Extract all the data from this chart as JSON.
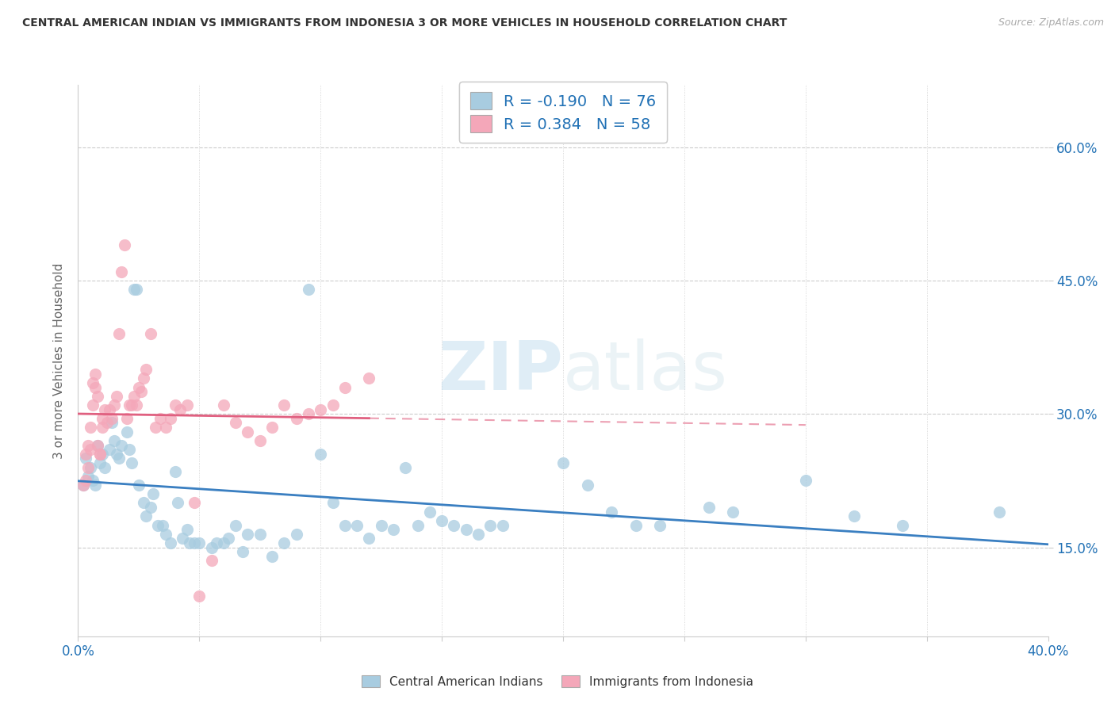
{
  "title": "CENTRAL AMERICAN INDIAN VS IMMIGRANTS FROM INDONESIA 3 OR MORE VEHICLES IN HOUSEHOLD CORRELATION CHART",
  "source": "Source: ZipAtlas.com",
  "ylabel": "3 or more Vehicles in Household",
  "ytick_vals": [
    15,
    30,
    45,
    60
  ],
  "ytick_labels": [
    "15.0%",
    "30.0%",
    "45.0%",
    "60.0%"
  ],
  "xtick_labels": [
    "0.0%",
    "",
    "",
    "",
    "",
    "",
    "",
    "",
    "40.0%"
  ],
  "xlim": [
    0,
    40
  ],
  "ylim": [
    5,
    67
  ],
  "legend1_R": "-0.190",
  "legend1_N": "76",
  "legend2_R": "0.384",
  "legend2_N": "58",
  "blue_fill": "#a8cce0",
  "pink_fill": "#f4a7b9",
  "blue_line": "#3a7fc1",
  "pink_line": "#e06080",
  "watermark_color": "#d0eaf5",
  "blue_scatter": [
    [
      0.2,
      22.0
    ],
    [
      0.3,
      25.0
    ],
    [
      0.4,
      23.0
    ],
    [
      0.5,
      24.0
    ],
    [
      0.6,
      22.5
    ],
    [
      0.7,
      22.0
    ],
    [
      0.8,
      26.5
    ],
    [
      0.9,
      24.5
    ],
    [
      1.0,
      25.5
    ],
    [
      1.1,
      24.0
    ],
    [
      1.3,
      26.0
    ],
    [
      1.4,
      29.0
    ],
    [
      1.5,
      27.0
    ],
    [
      1.6,
      25.5
    ],
    [
      1.7,
      25.0
    ],
    [
      1.8,
      26.5
    ],
    [
      2.0,
      28.0
    ],
    [
      2.1,
      26.0
    ],
    [
      2.2,
      24.5
    ],
    [
      2.3,
      44.0
    ],
    [
      2.4,
      44.0
    ],
    [
      2.5,
      22.0
    ],
    [
      2.7,
      20.0
    ],
    [
      2.8,
      18.5
    ],
    [
      3.0,
      19.5
    ],
    [
      3.1,
      21.0
    ],
    [
      3.3,
      17.5
    ],
    [
      3.5,
      17.5
    ],
    [
      3.6,
      16.5
    ],
    [
      3.8,
      15.5
    ],
    [
      4.0,
      23.5
    ],
    [
      4.1,
      20.0
    ],
    [
      4.3,
      16.0
    ],
    [
      4.5,
      17.0
    ],
    [
      4.6,
      15.5
    ],
    [
      4.8,
      15.5
    ],
    [
      5.0,
      15.5
    ],
    [
      5.5,
      15.0
    ],
    [
      5.7,
      15.5
    ],
    [
      6.0,
      15.5
    ],
    [
      6.2,
      16.0
    ],
    [
      6.5,
      17.5
    ],
    [
      6.8,
      14.5
    ],
    [
      7.0,
      16.5
    ],
    [
      7.5,
      16.5
    ],
    [
      8.0,
      14.0
    ],
    [
      8.5,
      15.5
    ],
    [
      9.0,
      16.5
    ],
    [
      9.5,
      44.0
    ],
    [
      10.0,
      25.5
    ],
    [
      10.5,
      20.0
    ],
    [
      11.0,
      17.5
    ],
    [
      11.5,
      17.5
    ],
    [
      12.0,
      16.0
    ],
    [
      12.5,
      17.5
    ],
    [
      13.0,
      17.0
    ],
    [
      13.5,
      24.0
    ],
    [
      14.0,
      17.5
    ],
    [
      14.5,
      19.0
    ],
    [
      15.0,
      18.0
    ],
    [
      15.5,
      17.5
    ],
    [
      16.0,
      17.0
    ],
    [
      16.5,
      16.5
    ],
    [
      17.0,
      17.5
    ],
    [
      17.5,
      17.5
    ],
    [
      20.0,
      24.5
    ],
    [
      21.0,
      22.0
    ],
    [
      22.0,
      19.0
    ],
    [
      23.0,
      17.5
    ],
    [
      24.0,
      17.5
    ],
    [
      26.0,
      19.5
    ],
    [
      27.0,
      19.0
    ],
    [
      30.0,
      22.5
    ],
    [
      32.0,
      18.5
    ],
    [
      34.0,
      17.5
    ],
    [
      38.0,
      19.0
    ]
  ],
  "pink_scatter": [
    [
      0.2,
      22.0
    ],
    [
      0.3,
      22.5
    ],
    [
      0.3,
      25.5
    ],
    [
      0.4,
      24.0
    ],
    [
      0.4,
      26.5
    ],
    [
      0.5,
      26.0
    ],
    [
      0.5,
      28.5
    ],
    [
      0.6,
      31.0
    ],
    [
      0.6,
      33.5
    ],
    [
      0.7,
      33.0
    ],
    [
      0.7,
      34.5
    ],
    [
      0.8,
      32.0
    ],
    [
      0.8,
      26.5
    ],
    [
      0.9,
      25.5
    ],
    [
      0.9,
      25.5
    ],
    [
      1.0,
      28.5
    ],
    [
      1.0,
      29.5
    ],
    [
      1.1,
      30.5
    ],
    [
      1.2,
      29.0
    ],
    [
      1.3,
      30.5
    ],
    [
      1.4,
      29.5
    ],
    [
      1.5,
      31.0
    ],
    [
      1.6,
      32.0
    ],
    [
      1.7,
      39.0
    ],
    [
      1.8,
      46.0
    ],
    [
      1.9,
      49.0
    ],
    [
      2.0,
      29.5
    ],
    [
      2.1,
      31.0
    ],
    [
      2.2,
      31.0
    ],
    [
      2.3,
      32.0
    ],
    [
      2.4,
      31.0
    ],
    [
      2.5,
      33.0
    ],
    [
      2.6,
      32.5
    ],
    [
      2.7,
      34.0
    ],
    [
      2.8,
      35.0
    ],
    [
      3.0,
      39.0
    ],
    [
      3.2,
      28.5
    ],
    [
      3.4,
      29.5
    ],
    [
      3.6,
      28.5
    ],
    [
      3.8,
      29.5
    ],
    [
      4.0,
      31.0
    ],
    [
      4.2,
      30.5
    ],
    [
      4.5,
      31.0
    ],
    [
      4.8,
      20.0
    ],
    [
      5.0,
      9.5
    ],
    [
      5.5,
      13.5
    ],
    [
      6.0,
      31.0
    ],
    [
      6.5,
      29.0
    ],
    [
      7.0,
      28.0
    ],
    [
      7.5,
      27.0
    ],
    [
      8.0,
      28.5
    ],
    [
      8.5,
      31.0
    ],
    [
      9.0,
      29.5
    ],
    [
      9.5,
      30.0
    ],
    [
      10.0,
      30.5
    ],
    [
      10.5,
      31.0
    ],
    [
      11.0,
      33.0
    ],
    [
      12.0,
      34.0
    ]
  ]
}
